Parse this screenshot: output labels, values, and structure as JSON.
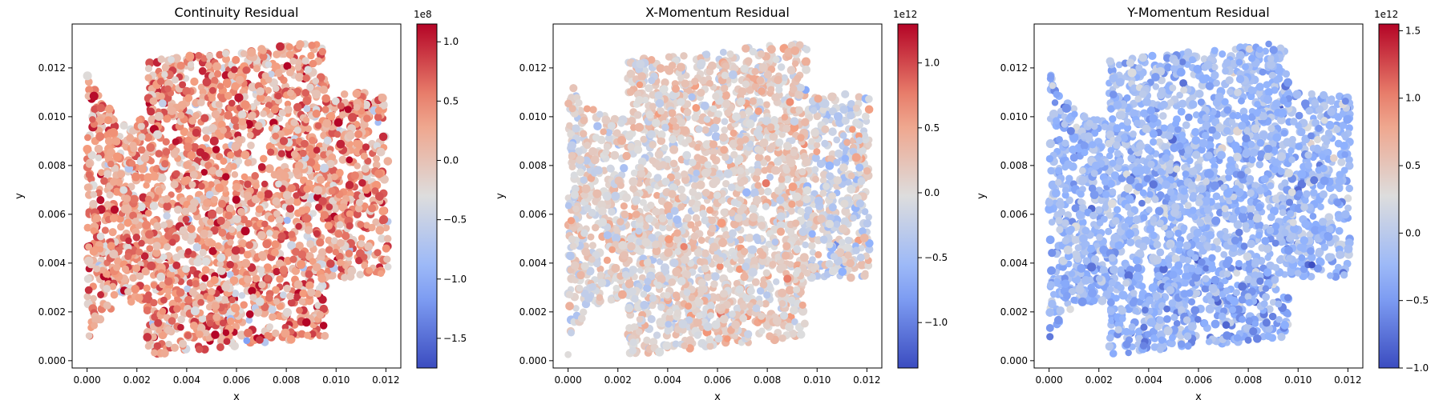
{
  "chart_data": [
    {
      "type": "scatter",
      "title": "Continuity Residual",
      "xlabel": "x",
      "ylabel": "y",
      "xlim": [
        -0.0006,
        0.0126
      ],
      "ylim": [
        -0.0003,
        0.0138
      ],
      "xticks": [
        0.0,
        0.002,
        0.004,
        0.006,
        0.008,
        0.01,
        0.012
      ],
      "xtick_labels": [
        "0.000",
        "0.002",
        "0.004",
        "0.006",
        "0.008",
        "0.010",
        "0.012"
      ],
      "yticks": [
        0.0,
        0.002,
        0.004,
        0.006,
        0.008,
        0.01,
        0.012
      ],
      "ytick_labels": [
        "0.000",
        "0.002",
        "0.004",
        "0.006",
        "0.008",
        "0.010",
        "0.012"
      ],
      "colorbar": {
        "cmap": "coolwarm",
        "exponent_label": "1e8",
        "vmin": -1.75,
        "vmax": 1.15,
        "ticks": [
          -1.5,
          -1.0,
          -0.5,
          0.0,
          0.5,
          1.0
        ],
        "tick_labels": [
          "−1.5",
          "−1.0",
          "−0.5",
          "0.0",
          "0.5",
          "1.0"
        ]
      },
      "field": {
        "base": 0.35,
        "gradient": 0.05,
        "noise": 0.38,
        "bias_region": "bottom-right"
      }
    },
    {
      "type": "scatter",
      "title": "X-Momentum Residual",
      "xlabel": "x",
      "ylabel": "y",
      "xlim": [
        -0.0006,
        0.0126
      ],
      "ylim": [
        -0.0003,
        0.0138
      ],
      "xticks": [
        0.0,
        0.002,
        0.004,
        0.006,
        0.008,
        0.01,
        0.012
      ],
      "xtick_labels": [
        "0.000",
        "0.002",
        "0.004",
        "0.006",
        "0.008",
        "0.010",
        "0.012"
      ],
      "yticks": [
        0.0,
        0.002,
        0.004,
        0.006,
        0.008,
        0.01,
        0.012
      ],
      "ytick_labels": [
        "0.000",
        "0.002",
        "0.004",
        "0.006",
        "0.008",
        "0.010",
        "0.012"
      ],
      "colorbar": {
        "cmap": "coolwarm",
        "exponent_label": "1e12",
        "vmin": -1.35,
        "vmax": 1.3,
        "ticks": [
          -1.0,
          -0.5,
          0.0,
          0.5,
          1.0
        ],
        "tick_labels": [
          "−1.0",
          "−0.5",
          "0.0",
          "0.5",
          "1.0"
        ]
      },
      "field": {
        "base": 0.1,
        "gradient": 0.1,
        "noise": 0.22,
        "bias_region": "right-edge"
      }
    },
    {
      "type": "scatter",
      "title": "Y-Momentum Residual",
      "xlabel": "x",
      "ylabel": "y",
      "xlim": [
        -0.0006,
        0.0126
      ],
      "ylim": [
        -0.0003,
        0.0138
      ],
      "xticks": [
        0.0,
        0.002,
        0.004,
        0.006,
        0.008,
        0.01,
        0.012
      ],
      "xtick_labels": [
        "0.000",
        "0.002",
        "0.004",
        "0.006",
        "0.008",
        "0.010",
        "0.012"
      ],
      "yticks": [
        0.0,
        0.002,
        0.004,
        0.006,
        0.008,
        0.01,
        0.012
      ],
      "ytick_labels": [
        "0.000",
        "0.002",
        "0.004",
        "0.006",
        "0.008",
        "0.010",
        "0.012"
      ],
      "colorbar": {
        "cmap": "coolwarm",
        "exponent_label": "1e12",
        "vmin": -1.0,
        "vmax": 1.55,
        "ticks": [
          -1.0,
          -0.5,
          0.0,
          0.5,
          1.0,
          1.5
        ],
        "tick_labels": [
          "−1.0",
          "−0.5",
          "0.0",
          "0.5",
          "1.0",
          "1.5"
        ]
      },
      "field": {
        "base": -0.22,
        "gradient": -0.06,
        "noise": 0.2,
        "bias_region": "bottom"
      }
    }
  ]
}
